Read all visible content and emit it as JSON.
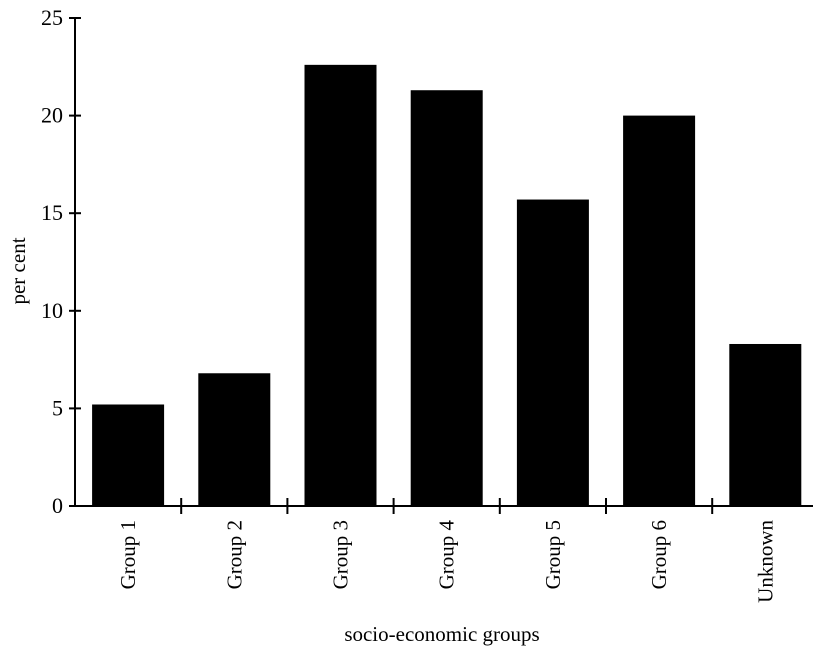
{
  "chart_data": {
    "type": "bar",
    "title": "",
    "xlabel": "socio-economic groups",
    "ylabel": "per cent",
    "categories": [
      "Group 1",
      "Group 2",
      "Group 3",
      "Group 4",
      "Group 5",
      "Group 6",
      "Unknown"
    ],
    "values": [
      5.2,
      6.8,
      22.6,
      21.3,
      15.7,
      20.0,
      8.3
    ],
    "yticks": [
      "0",
      "5",
      "10",
      "15",
      "20",
      "25"
    ],
    "ylim": [
      0,
      25
    ],
    "grid": false,
    "bar_color": "#000000",
    "axis_color": "#000000"
  }
}
